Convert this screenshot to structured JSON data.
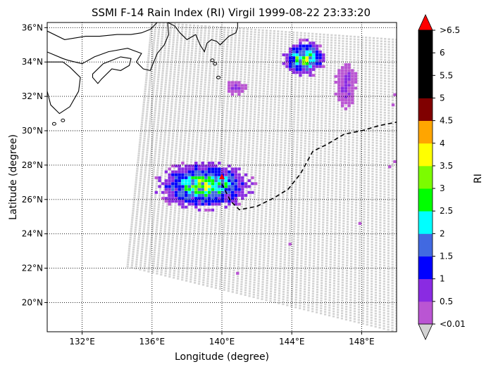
{
  "title": "SSMI F-14 Rain Index (RI) Virgil 1999-08-22 23:33:20",
  "xlabel": "Longitude (degree)",
  "ylabel": "Latitude (degree)",
  "x_ticks": [
    "132°E",
    "136°E",
    "140°E",
    "144°E",
    "148°E"
  ],
  "y_ticks": [
    "20°N",
    "22°N",
    "24°N",
    "26°N",
    "28°N",
    "30°N",
    "32°N",
    "34°N",
    "36°N"
  ],
  "colorbar": {
    "label": "RI",
    "tick_labels": [
      "<0.01",
      "0.5",
      "1",
      "1.5",
      "2",
      "2.5",
      "3",
      "3.5",
      "4",
      "4.5",
      "5",
      "5.5",
      "6",
      ">6.5"
    ],
    "colors": [
      "#ba55d3",
      "#8a2be2",
      "#0000ff",
      "#4169e1",
      "#00ffff",
      "#00ff00",
      "#7cfc00",
      "#ffff00",
      "#ffa500",
      "#800000",
      "#000000",
      "#000000",
      "#000000"
    ],
    "under_color": "#d3d3d3",
    "over_color": "#ff0000"
  },
  "map": {
    "lon_range": [
      130,
      150
    ],
    "lat_range": [
      18.3,
      36.3
    ],
    "swath_color": "#d3d3d3",
    "coastline_color": "#000000",
    "track_color": "#000000",
    "storm_center": {
      "lon": 140.0,
      "lat": 27.3,
      "color": "#ff0000"
    },
    "track": [
      [
        140.0,
        26.9
      ],
      [
        140.5,
        25.9
      ],
      [
        141.0,
        25.4
      ],
      [
        142.0,
        25.6
      ],
      [
        143.0,
        26.1
      ],
      [
        143.8,
        26.6
      ],
      [
        144.5,
        27.5
      ],
      [
        145.2,
        28.8
      ],
      [
        146.0,
        29.2
      ],
      [
        147.0,
        29.8
      ],
      [
        148.0,
        30.0
      ],
      [
        149.0,
        30.3
      ],
      [
        150.0,
        30.5
      ]
    ],
    "rain_clusters": [
      {
        "region": "storm",
        "lon": 139.0,
        "lat": 26.8,
        "dlon": 1.6,
        "dlat": 0.8,
        "peak_ri": 3.2
      },
      {
        "region": "north",
        "lon": 144.7,
        "lat": 34.2,
        "dlon": 0.7,
        "dlat": 0.6,
        "peak_ri": 3.2
      },
      {
        "region": "north-east",
        "lon": 147.1,
        "lat": 32.7,
        "dlon": 0.35,
        "dlat": 0.8,
        "peak_ri": 0.8
      },
      {
        "region": "mid",
        "lon": 140.8,
        "lat": 32.5,
        "dlon": 0.35,
        "dlat": 0.25,
        "peak_ri": 0.7
      }
    ],
    "isolated_points": [
      [
        143.9,
        23.4
      ],
      [
        140.9,
        21.7
      ],
      [
        147.9,
        24.6
      ],
      [
        149.6,
        27.9
      ],
      [
        149.9,
        28.2
      ],
      [
        149.8,
        31.5
      ],
      [
        149.9,
        32.1
      ],
      [
        146.9,
        31.8
      ]
    ]
  }
}
